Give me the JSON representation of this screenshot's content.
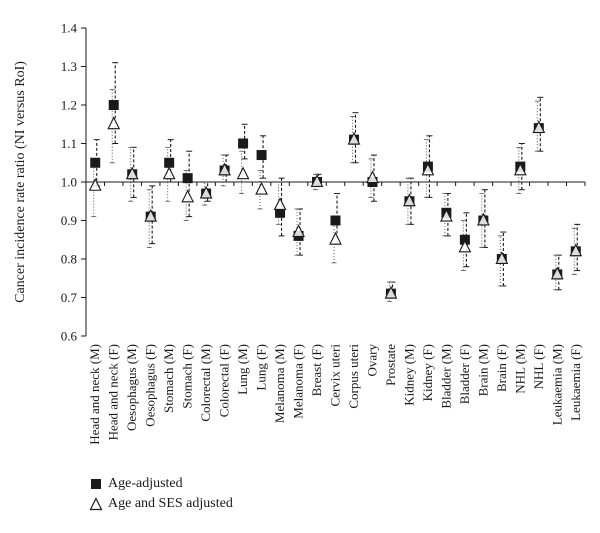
{
  "chart_data": {
    "type": "scatter",
    "ylabel": "Cancer incidence rate ratio (NI versus RoI)",
    "xlabel": "",
    "ylim": [
      0.6,
      1.4
    ],
    "yticks": [
      "0.6",
      "0.7",
      "0.8",
      "0.9",
      "1.0",
      "1.1",
      "1.2",
      "1.3",
      "1.4"
    ],
    "reference_line": 1.0,
    "categories": [
      "Head and neck (M)",
      "Head and neck (F)",
      "Oesophagus (M)",
      "Oesophagus (F)",
      "Stomach (M)",
      "Stomach (F)",
      "Colorectal (M)",
      "Colorectal (F)",
      "Lung (M)",
      "Lung (F)",
      "Melanoma (M)",
      "Melanoma (F)",
      "Breast (F)",
      "Cervix uteri",
      "Corpus uteri",
      "Ovary",
      "Prostate",
      "Kidney (M)",
      "Kidney (F)",
      "Bladder (M)",
      "Bladder (F)",
      "Brain (M)",
      "Brain (F)",
      "NHL (M)",
      "NHL (F)",
      "Leukaemia (M)",
      "Leukaemia (F)"
    ],
    "series": [
      {
        "name": "Age-adjusted",
        "marker": "filled-square",
        "values": [
          1.05,
          1.2,
          1.02,
          0.91,
          1.05,
          1.01,
          0.97,
          1.03,
          1.1,
          1.07,
          0.92,
          0.86,
          1.0,
          0.9,
          1.11,
          1.0,
          0.71,
          0.95,
          1.04,
          0.92,
          0.85,
          0.9,
          0.8,
          1.04,
          1.14,
          0.76,
          0.82
        ],
        "ci_low": [
          0.99,
          1.1,
          0.96,
          0.84,
          1.0,
          0.91,
          0.95,
          1.0,
          1.06,
          1.01,
          0.86,
          0.81,
          0.99,
          0.84,
          1.05,
          0.95,
          0.7,
          0.89,
          0.96,
          0.86,
          0.78,
          0.83,
          0.73,
          0.98,
          1.08,
          0.72,
          0.77
        ],
        "ci_high": [
          1.11,
          1.31,
          1.09,
          0.99,
          1.11,
          1.08,
          1.0,
          1.07,
          1.15,
          1.12,
          1.01,
          0.93,
          1.02,
          0.97,
          1.18,
          1.07,
          0.74,
          1.01,
          1.12,
          0.97,
          0.92,
          0.98,
          0.87,
          1.1,
          1.22,
          0.81,
          0.89
        ]
      },
      {
        "name": "Age and SES adjusted",
        "marker": "open-triangle",
        "values": [
          0.99,
          1.15,
          1.02,
          0.91,
          1.02,
          0.96,
          0.97,
          1.03,
          1.02,
          0.98,
          0.94,
          0.87,
          1.0,
          0.85,
          1.11,
          1.01,
          0.71,
          0.95,
          1.03,
          0.91,
          0.83,
          0.9,
          0.8,
          1.03,
          1.14,
          0.76,
          0.82
        ],
        "ci_low": [
          0.91,
          1.05,
          0.95,
          0.83,
          0.95,
          0.9,
          0.94,
          0.99,
          0.97,
          0.93,
          0.89,
          0.81,
          0.98,
          0.79,
          1.05,
          0.96,
          0.69,
          0.89,
          0.96,
          0.86,
          0.77,
          0.83,
          0.73,
          0.97,
          1.08,
          0.72,
          0.76
        ],
        "ci_high": [
          1.06,
          1.24,
          1.09,
          0.98,
          1.09,
          1.03,
          1.0,
          1.07,
          1.08,
          1.03,
          1.0,
          0.93,
          1.02,
          0.91,
          1.17,
          1.06,
          0.74,
          1.01,
          1.11,
          0.97,
          0.9,
          0.97,
          0.86,
          1.09,
          1.21,
          0.81,
          0.88
        ]
      }
    ],
    "legend": {
      "placement": "bottom-left",
      "items": [
        {
          "label": "Age-adjusted",
          "marker": "filled-square"
        },
        {
          "label": "Age and SES adjusted",
          "marker": "open-triangle"
        }
      ]
    },
    "colors": {
      "marker": "#1a1a1a",
      "axis": "#1a1a1a",
      "ci_age": "#1a1a1a",
      "ci_ses": "#555555"
    }
  }
}
